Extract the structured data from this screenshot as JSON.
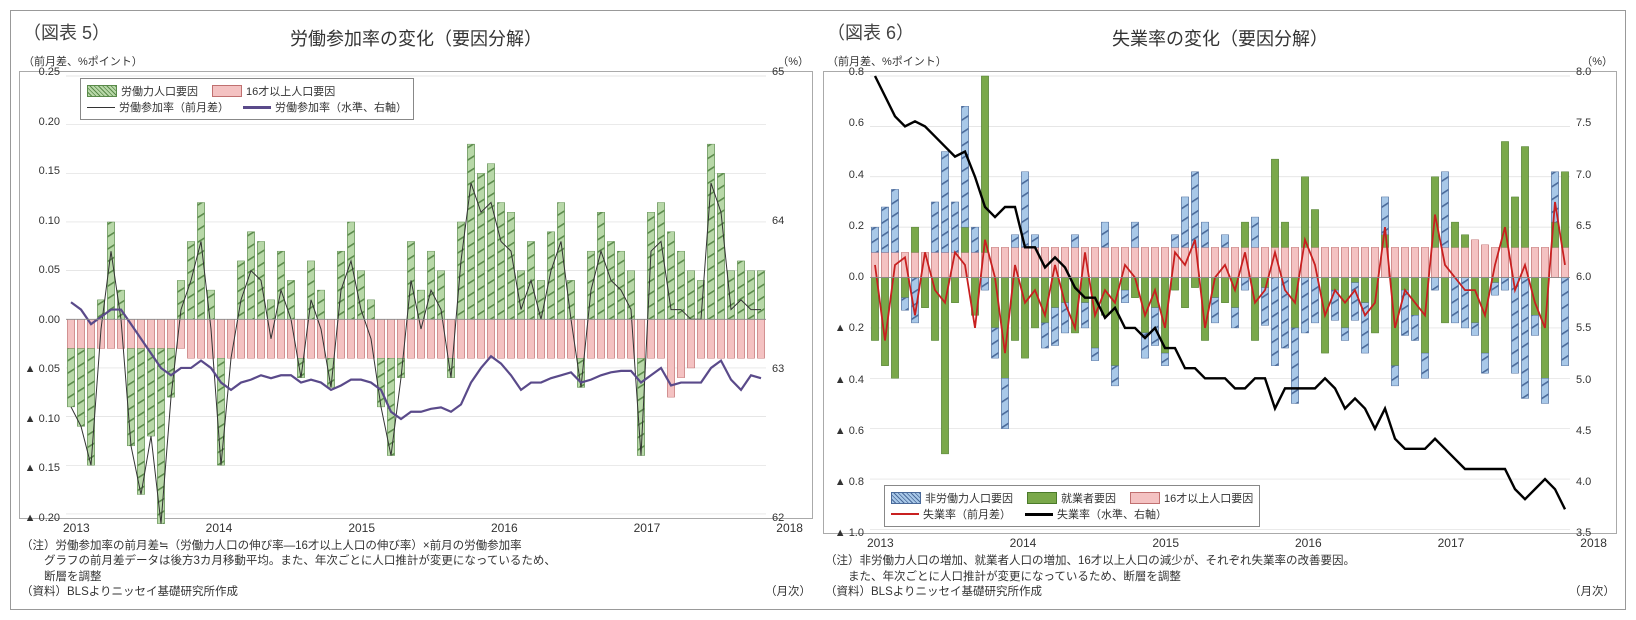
{
  "chart5": {
    "fig_label": "（図表 5）",
    "title": "労働参加率の変化（要因分解）",
    "y_left_label": "（前月差、%ポイント）",
    "y_right_label": "（%）",
    "x_unit_label": "（月次）",
    "x_labels": [
      "2013",
      "2014",
      "2015",
      "2016",
      "2017",
      "2018"
    ],
    "y_left": {
      "min": -0.2,
      "max": 0.25,
      "ticks": [
        "▲ 0.20",
        "▲ 0.15",
        "▲ 0.10",
        "▲ 0.05",
        "0.00",
        "0.05",
        "0.10",
        "0.15",
        "0.20",
        "0.25"
      ],
      "tick_vals": [
        -0.2,
        -0.15,
        -0.1,
        -0.05,
        0.0,
        0.05,
        0.1,
        0.15,
        0.2,
        0.25
      ]
    },
    "y_right": {
      "min": 62,
      "max": 65,
      "ticks": [
        "62",
        "63",
        "64",
        "65"
      ],
      "tick_vals": [
        62,
        63,
        64,
        65
      ]
    },
    "legend": {
      "labor_force": "労働力人口要因",
      "pop16": "16才以上人口要因",
      "mom": "労働参加率（前月差）",
      "level": "労働参加率（水準、右軸）"
    },
    "colors": {
      "labor_force_fill": "#b8d8a8",
      "labor_force_stroke": "#5a8a4a",
      "pop16_fill": "#f4c2c2",
      "pop16_stroke": "#c07070",
      "mom_line": "#333333",
      "level_line": "#5a4a8a",
      "grid": "#dddddd",
      "bg": "#ffffff"
    },
    "series": {
      "labor_force": [
        -0.06,
        -0.08,
        -0.12,
        0.02,
        0.1,
        0.03,
        -0.1,
        -0.15,
        -0.09,
        -0.18,
        -0.05,
        0.04,
        0.08,
        0.12,
        0.03,
        -0.11,
        0.0,
        0.06,
        0.09,
        0.08,
        0.02,
        0.07,
        0.04,
        -0.02,
        0.06,
        0.03,
        -0.03,
        0.07,
        0.1,
        0.05,
        0.02,
        -0.05,
        -0.1,
        -0.02,
        0.08,
        0.03,
        0.07,
        0.05,
        -0.02,
        0.1,
        0.18,
        0.15,
        0.16,
        0.12,
        0.11,
        0.05,
        0.08,
        0.04,
        0.09,
        0.12,
        0.04,
        -0.03,
        0.07,
        0.11,
        0.08,
        0.07,
        0.05,
        -0.1,
        0.11,
        0.12,
        0.09,
        0.07,
        0.05,
        0.04,
        0.18,
        0.15,
        0.05,
        0.06,
        0.05,
        0.05
      ],
      "pop16": [
        -0.03,
        -0.03,
        -0.03,
        -0.03,
        -0.03,
        -0.03,
        -0.03,
        -0.03,
        -0.03,
        -0.03,
        -0.03,
        -0.03,
        -0.04,
        -0.04,
        -0.04,
        -0.04,
        -0.04,
        -0.04,
        -0.04,
        -0.04,
        -0.04,
        -0.04,
        -0.04,
        -0.04,
        -0.04,
        -0.04,
        -0.04,
        -0.04,
        -0.04,
        -0.04,
        -0.04,
        -0.04,
        -0.04,
        -0.04,
        -0.04,
        -0.04,
        -0.04,
        -0.04,
        -0.04,
        -0.04,
        -0.04,
        -0.04,
        -0.04,
        -0.04,
        -0.04,
        -0.04,
        -0.04,
        -0.04,
        -0.04,
        -0.04,
        -0.04,
        -0.04,
        -0.04,
        -0.04,
        -0.04,
        -0.04,
        -0.04,
        -0.04,
        -0.04,
        -0.04,
        -0.08,
        -0.06,
        -0.05,
        -0.04,
        -0.04,
        -0.04,
        -0.04,
        -0.04,
        -0.04,
        -0.04
      ],
      "mom": [
        -0.09,
        -0.11,
        -0.15,
        -0.01,
        0.07,
        0.0,
        -0.13,
        -0.18,
        -0.12,
        -0.21,
        -0.08,
        0.01,
        0.04,
        0.08,
        -0.01,
        -0.15,
        -0.04,
        0.02,
        0.05,
        0.04,
        -0.02,
        0.03,
        0.0,
        -0.06,
        0.02,
        -0.01,
        -0.07,
        0.03,
        0.06,
        0.01,
        -0.02,
        -0.09,
        -0.14,
        -0.06,
        0.04,
        -0.01,
        0.03,
        0.01,
        -0.06,
        0.06,
        0.14,
        0.11,
        0.12,
        0.08,
        0.07,
        0.01,
        0.04,
        0.0,
        0.05,
        0.08,
        0.0,
        -0.07,
        0.03,
        0.07,
        0.04,
        0.03,
        0.01,
        -0.14,
        0.07,
        0.08,
        0.01,
        0.01,
        0.0,
        0.0,
        0.14,
        0.11,
        0.01,
        0.02,
        0.01,
        0.01
      ],
      "level": [
        63.45,
        63.4,
        63.3,
        63.35,
        63.4,
        63.4,
        63.3,
        63.2,
        63.1,
        63.0,
        62.95,
        63.0,
        63.0,
        63.05,
        63.0,
        62.9,
        62.85,
        62.9,
        62.92,
        62.95,
        62.93,
        62.95,
        62.95,
        62.9,
        62.92,
        62.9,
        62.85,
        62.88,
        62.92,
        62.92,
        62.9,
        62.85,
        62.7,
        62.65,
        62.7,
        62.7,
        62.72,
        62.73,
        62.7,
        62.75,
        62.9,
        63.0,
        63.08,
        63.03,
        62.95,
        62.85,
        62.9,
        62.9,
        62.93,
        62.95,
        62.97,
        62.9,
        62.92,
        62.95,
        62.97,
        62.98,
        62.98,
        62.9,
        62.95,
        63.0,
        62.88,
        62.9,
        62.9,
        62.9,
        63.0,
        63.05,
        62.92,
        62.85,
        62.95,
        62.93
      ]
    },
    "note_lines": [
      "（注）労働参加率の前月差≒（労働力人口の伸び率―16才以上人口の伸び率）×前月の労働参加率",
      "　　グラフの前月差データは後方3カ月移動平均。また、年次ごとに人口推計が変更になっているため、",
      "　　断層を調整",
      "（資料）BLSよりニッセイ基礎研究所作成"
    ]
  },
  "chart6": {
    "fig_label": "（図表 6）",
    "title": "失業率の変化（要因分解）",
    "y_left_label": "（前月差、%ポイント）",
    "y_right_label": "（%）",
    "x_unit_label": "（月次）",
    "x_labels": [
      "2013",
      "2014",
      "2015",
      "2016",
      "2017",
      "2018"
    ],
    "y_left": {
      "min": -1.0,
      "max": 0.8,
      "ticks": [
        "▲ 1.0",
        "▲ 0.8",
        "▲ 0.6",
        "▲ 0.4",
        "▲ 0.2",
        "0.0",
        "0.2",
        "0.4",
        "0.6",
        "0.8"
      ],
      "tick_vals": [
        -1.0,
        -0.8,
        -0.6,
        -0.4,
        -0.2,
        0.0,
        0.2,
        0.4,
        0.6,
        0.8
      ]
    },
    "y_right": {
      "min": 3.5,
      "max": 8.0,
      "ticks": [
        "3.5",
        "4.0",
        "4.5",
        "5.0",
        "5.5",
        "6.0",
        "6.5",
        "7.0",
        "7.5",
        "8.0"
      ],
      "tick_vals": [
        3.5,
        4.0,
        4.5,
        5.0,
        5.5,
        6.0,
        6.5,
        7.0,
        7.5,
        8.0
      ]
    },
    "legend": {
      "nonlabor": "非労働力人口要因",
      "emp": "就業者要因",
      "pop16": "16才以上人口要因",
      "mom": "失業率（前月差）",
      "level": "失業率（水準、右軸）"
    },
    "colors": {
      "nonlabor_fill": "#a8c8e8",
      "nonlabor_stroke": "#4a6a9a",
      "emp_fill": "#7aa84a",
      "emp_stroke": "#4a7a2a",
      "pop16_fill": "#f4c2c2",
      "pop16_stroke": "#c07070",
      "mom_line": "#c82020",
      "level_line": "#000000",
      "grid": "#dddddd",
      "bg": "#ffffff"
    },
    "series": {
      "nonlabor": [
        0.1,
        0.18,
        0.25,
        -0.05,
        -0.18,
        0.0,
        0.2,
        0.4,
        0.2,
        0.48,
        0.1,
        -0.05,
        -0.12,
        -0.2,
        0.05,
        0.3,
        0.05,
        -0.1,
        -0.15,
        -0.12,
        0.05,
        -0.1,
        -0.05,
        0.1,
        -0.08,
        -0.05,
        0.1,
        -0.1,
        -0.15,
        -0.05,
        0.05,
        0.2,
        0.3,
        0.1,
        -0.1,
        0.05,
        -0.08,
        -0.05,
        0.12,
        -0.15,
        -0.35,
        -0.28,
        -0.3,
        -0.22,
        -0.18,
        0.0,
        -0.12,
        -0.05,
        -0.15,
        -0.2,
        0.0,
        0.15,
        -0.08,
        -0.18,
        -0.1,
        -0.1,
        -0.05,
        0.3,
        -0.18,
        -0.2,
        -0.05,
        -0.08,
        -0.05,
        -0.05,
        -0.38,
        -0.48,
        -0.08,
        -0.1,
        0.2,
        -0.35
      ],
      "emp": [
        -0.25,
        -0.35,
        -0.4,
        -0.08,
        0.1,
        -0.12,
        -0.25,
        -0.7,
        -0.1,
        0.1,
        -0.15,
        0.7,
        -0.2,
        -0.4,
        -0.25,
        -0.32,
        -0.2,
        -0.18,
        -0.12,
        -0.1,
        -0.22,
        -0.1,
        -0.28,
        -0.15,
        -0.35,
        -0.05,
        -0.08,
        -0.22,
        -0.12,
        -0.3,
        -0.05,
        -0.12,
        -0.04,
        -0.25,
        -0.08,
        -0.1,
        -0.12,
        0.1,
        -0.25,
        -0.04,
        0.35,
        0.1,
        -0.2,
        0.28,
        0.15,
        -0.3,
        -0.05,
        -0.2,
        -0.02,
        -0.1,
        -0.22,
        0.05,
        -0.35,
        -0.05,
        -0.15,
        -0.3,
        0.28,
        -0.18,
        0.1,
        0.05,
        -0.18,
        -0.3,
        -0.02,
        0.42,
        0.2,
        0.4,
        -0.15,
        -0.4,
        0.1,
        0.3
      ],
      "pop16": [
        0.1,
        0.1,
        0.1,
        0.1,
        0.1,
        0.1,
        0.1,
        0.1,
        0.1,
        0.1,
        0.1,
        0.1,
        0.12,
        0.12,
        0.12,
        0.12,
        0.12,
        0.12,
        0.12,
        0.12,
        0.12,
        0.12,
        0.12,
        0.12,
        0.12,
        0.12,
        0.12,
        0.12,
        0.12,
        0.12,
        0.12,
        0.12,
        0.12,
        0.12,
        0.12,
        0.12,
        0.12,
        0.12,
        0.12,
        0.12,
        0.12,
        0.12,
        0.12,
        0.12,
        0.12,
        0.12,
        0.12,
        0.12,
        0.12,
        0.12,
        0.12,
        0.12,
        0.12,
        0.12,
        0.12,
        0.12,
        0.12,
        0.12,
        0.12,
        0.12,
        0.15,
        0.13,
        0.12,
        0.12,
        0.12,
        0.12,
        0.12,
        0.12,
        0.12,
        0.12
      ],
      "mom": [
        0.05,
        -0.25,
        0.05,
        0.08,
        -0.15,
        0.1,
        -0.05,
        -0.1,
        0.1,
        0.05,
        -0.2,
        0.15,
        0.0,
        -0.3,
        0.05,
        -0.1,
        -0.05,
        -0.15,
        0.05,
        -0.1,
        -0.2,
        0.1,
        -0.15,
        -0.05,
        -0.1,
        0.05,
        0.0,
        -0.15,
        -0.05,
        -0.2,
        0.1,
        0.05,
        0.15,
        -0.2,
        0.0,
        0.05,
        -0.05,
        0.1,
        -0.1,
        -0.05,
        0.1,
        -0.05,
        -0.1,
        0.15,
        0.05,
        -0.15,
        -0.05,
        -0.1,
        -0.05,
        -0.15,
        -0.1,
        0.2,
        -0.2,
        -0.05,
        -0.1,
        -0.15,
        0.25,
        0.05,
        0.0,
        -0.05,
        -0.05,
        -0.15,
        0.05,
        0.2,
        -0.05,
        0.05,
        -0.1,
        -0.2,
        0.3,
        0.05
      ],
      "level": [
        8.0,
        7.8,
        7.6,
        7.5,
        7.55,
        7.5,
        7.4,
        7.3,
        7.2,
        7.25,
        7.0,
        6.7,
        6.6,
        6.7,
        6.7,
        6.3,
        6.3,
        6.1,
        6.2,
        6.1,
        5.9,
        5.8,
        5.8,
        5.6,
        5.7,
        5.5,
        5.5,
        5.4,
        5.5,
        5.3,
        5.3,
        5.1,
        5.1,
        5.0,
        5.0,
        5.0,
        4.9,
        4.9,
        5.0,
        5.0,
        4.7,
        4.9,
        4.9,
        4.9,
        4.9,
        5.0,
        4.9,
        4.7,
        4.8,
        4.7,
        4.5,
        4.7,
        4.4,
        4.3,
        4.3,
        4.3,
        4.4,
        4.3,
        4.2,
        4.1,
        4.1,
        4.1,
        4.1,
        4.1,
        3.9,
        3.8,
        3.9,
        4.0,
        3.9,
        3.7
      ]
    },
    "note_lines": [
      "（注）非労働力人口の増加、就業者人口の増加、16才以上人口の減少が、それぞれ失業率の改善要因。",
      "　　また、年次ごとに人口推計が変更になっているため、断層を調整",
      "（資料）BLSよりニッセイ基礎研究所作成"
    ]
  }
}
